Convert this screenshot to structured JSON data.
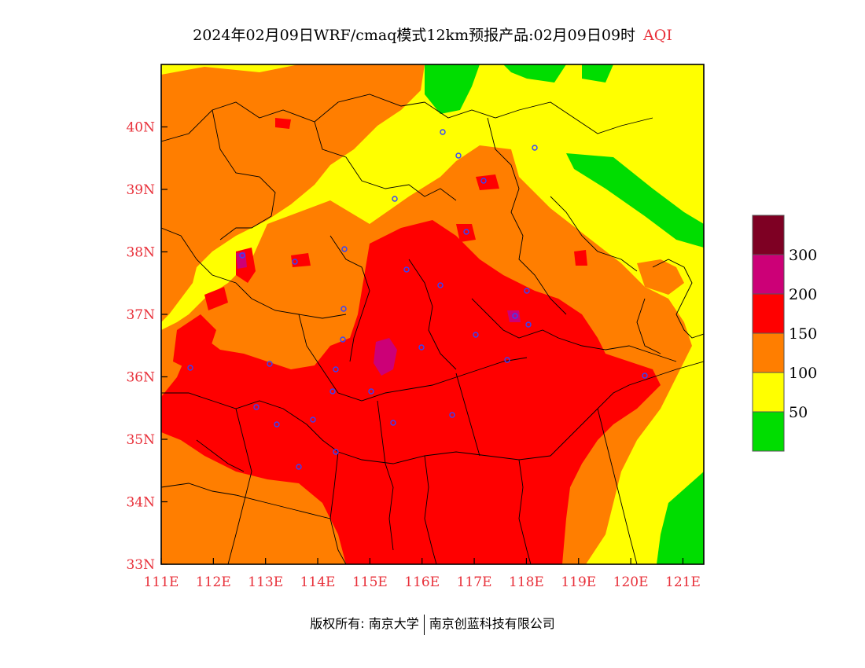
{
  "header": {
    "title": "2024年02月09日WRF/cmaq模式12km预报产品:02月09日09时",
    "variable": "AQI"
  },
  "map": {
    "lon_range": [
      111,
      121.4
    ],
    "lat_range": [
      33,
      41
    ],
    "lon_ticks": [
      "111E",
      "112E",
      "113E",
      "114E",
      "115E",
      "116E",
      "117E",
      "118E",
      "119E",
      "120E",
      "121E"
    ],
    "lat_ticks": [
      "33N",
      "34N",
      "35N",
      "36N",
      "37N",
      "38N",
      "39N",
      "40N"
    ]
  },
  "legend": {
    "labels": [
      "50",
      "100",
      "150",
      "200",
      "300"
    ],
    "colors": [
      "#00dd00",
      "#ffff00",
      "#ff7e00",
      "#ff0000",
      "#cc0077",
      "#7e0023"
    ]
  },
  "footer": {
    "copyright": "版权所有: 南京大学",
    "company": "南京创蓝科技有限公司"
  }
}
